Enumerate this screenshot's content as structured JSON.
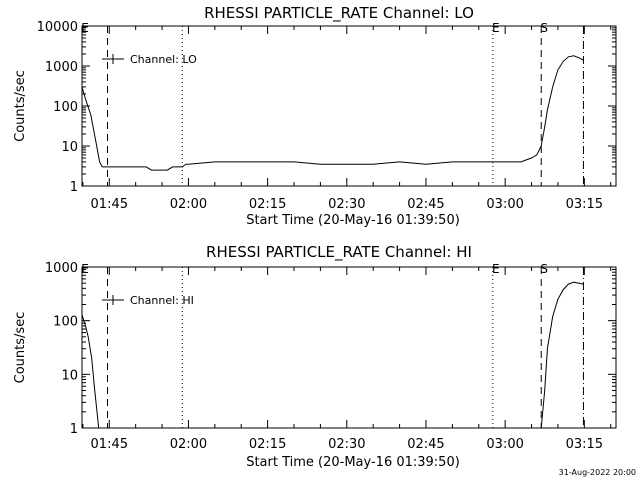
{
  "stamp": "31-Aug-2022 20:00",
  "chart_data": [
    {
      "type": "line",
      "title": "RHESSI PARTICLE_RATE Channel: LO",
      "xlabel": "Start Time (20-May-16 01:39:50)",
      "ylabel": "Counts/sec",
      "yscale": "log",
      "xlim": [
        "01:39:50",
        "03:21:00"
      ],
      "ylim": [
        1,
        10000
      ],
      "x_ticks": [
        "01:45",
        "02:00",
        "02:15",
        "02:30",
        "02:45",
        "03:00",
        "03:15"
      ],
      "y_ticks": [
        "1",
        "10",
        "100",
        "1000",
        "10000"
      ],
      "legend": "Channel: LO",
      "legend_position": "top-left",
      "markers": [
        {
          "label": "E",
          "time": "01:39:50",
          "style": "none"
        },
        {
          "label": "",
          "time": "01:44:40",
          "style": "dashed"
        },
        {
          "label": "",
          "time": "01:58:50",
          "style": "dotted"
        },
        {
          "label": "E",
          "time": "02:57:40",
          "style": "dotted"
        },
        {
          "label": "S",
          "time": "03:06:50",
          "style": "dashed"
        },
        {
          "label": "",
          "time": "03:14:50",
          "style": "dash-dot"
        }
      ],
      "series": [
        {
          "x": [
            "01:39:50",
            "01:40:30",
            "01:41:30",
            "01:42:30",
            "01:43:10",
            "01:43:40",
            "01:44:10",
            "01:44:40",
            "01:45:10",
            "01:46:00",
            "01:47:00",
            "01:48:00",
            "01:49:00",
            "01:50:00",
            "01:51:00",
            "01:52:00",
            "01:53:00",
            "01:54:00",
            "01:55:00",
            "01:56:00",
            "01:57:00",
            "01:58:00",
            "01:58:50",
            "01:59:30",
            "02:00:00",
            "02:05:00",
            "02:10:00",
            "02:15:00",
            "02:20:00",
            "02:25:00",
            "02:30:00",
            "02:35:00",
            "02:40:00",
            "02:45:00",
            "02:50:00",
            "02:55:00",
            "03:00:00",
            "03:03:00",
            "03:04:00",
            "03:05:00",
            "03:06:00",
            "03:06:50",
            "03:07:30",
            "03:08:00",
            "03:09:00",
            "03:10:00",
            "03:11:00",
            "03:12:00",
            "03:13:00",
            "03:14:00",
            "03:14:50"
          ],
          "y": [
            300,
            150,
            60,
            12,
            4,
            3,
            3,
            3,
            3,
            3,
            3,
            3,
            3,
            3,
            3,
            3,
            2.5,
            2.5,
            2.5,
            2.5,
            3,
            3,
            3,
            3.5,
            3.5,
            4,
            4,
            4,
            4,
            3.5,
            3.5,
            3.5,
            4,
            3.5,
            4,
            4,
            4,
            4,
            4.5,
            5,
            6,
            10,
            30,
            80,
            300,
            800,
            1300,
            1700,
            1800,
            1600,
            1400
          ]
        }
      ]
    },
    {
      "type": "line",
      "title": "RHESSI PARTICLE_RATE Channel: HI",
      "xlabel": "Start Time (20-May-16 01:39:50)",
      "ylabel": "Counts/sec",
      "yscale": "log",
      "xlim": [
        "01:39:50",
        "03:21:00"
      ],
      "ylim": [
        1,
        1000
      ],
      "x_ticks": [
        "01:45",
        "02:00",
        "02:15",
        "02:30",
        "02:45",
        "03:00",
        "03:15"
      ],
      "y_ticks": [
        "1",
        "10",
        "100",
        "1000"
      ],
      "legend": "Channel: HI",
      "legend_position": "top-left",
      "markers": [
        {
          "label": "E",
          "time": "01:39:50",
          "style": "none"
        },
        {
          "label": "",
          "time": "01:44:40",
          "style": "dashed"
        },
        {
          "label": "",
          "time": "01:58:50",
          "style": "dotted"
        },
        {
          "label": "E",
          "time": "02:57:40",
          "style": "dotted"
        },
        {
          "label": "S",
          "time": "03:06:50",
          "style": "dashed"
        },
        {
          "label": "",
          "time": "03:14:50",
          "style": "dash-dot"
        }
      ],
      "series": [
        {
          "x": [
            "01:39:50",
            "01:40:30",
            "01:41:00",
            "01:41:40",
            "01:42:10",
            "01:42:40",
            "01:43:00",
            "03:06:50",
            "03:07:30",
            "03:08:00",
            "03:09:00",
            "03:10:00",
            "03:11:00",
            "03:12:00",
            "03:13:00",
            "03:14:00",
            "03:14:50"
          ],
          "y": [
            130,
            80,
            50,
            20,
            6,
            2,
            1,
            1,
            5,
            30,
            120,
            250,
            380,
            480,
            520,
            500,
            480
          ]
        }
      ]
    }
  ]
}
